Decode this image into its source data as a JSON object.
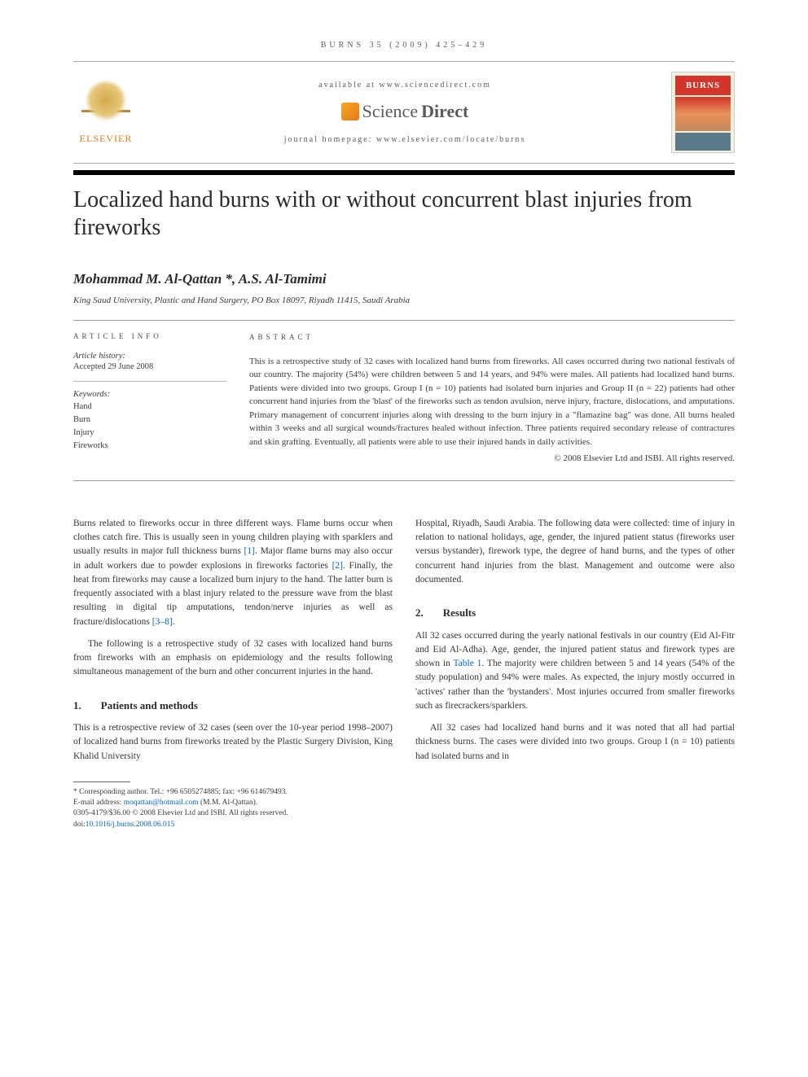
{
  "header": {
    "journal_line": "BURNS 35 (2009) 425–429",
    "available_at": "available at www.sciencedirect.com",
    "sd_label_1": "Science",
    "sd_label_2": "Direct",
    "journal_homepage": "journal homepage: www.elsevier.com/locate/burns",
    "elsevier": "ELSEVIER",
    "cover_title": "BURNS"
  },
  "title": "Localized hand burns with or without concurrent blast injuries from fireworks",
  "authors": "Mohammad M. Al-Qattan *, A.S. Al-Tamimi",
  "affiliation": "King Saud University, Plastic and Hand Surgery, PO Box 18097, Riyadh 11415, Saudi Arabia",
  "info": {
    "heading": "ARTICLE INFO",
    "history_label": "Article history:",
    "accepted": "Accepted 29 June 2008",
    "keywords_label": "Keywords:",
    "keywords": [
      "Hand",
      "Burn",
      "Injury",
      "Fireworks"
    ]
  },
  "abstract": {
    "heading": "ABSTRACT",
    "text": "This is a retrospective study of 32 cases with localized hand burns from fireworks. All cases occurred during two national festivals of our country. The majority (54%) were children between 5 and 14 years, and 94% were males. All patients had localized hand burns. Patients were divided into two groups. Group I (n = 10) patients had isolated burn injuries and Group II (n = 22) patients had other concurrent hand injuries from the 'blast' of the fireworks such as tendon avulsion, nerve injury, fracture, dislocations, and amputations. Primary management of concurrent injuries along with dressing to the burn injury in a \"flamazine bag\" was done. All burns healed within 3 weeks and all surgical wounds/fractures healed without infection. Three patients required secondary release of contractures and skin grafting. Eventually, all patients were able to use their injured hands in daily activities.",
    "copyright": "© 2008 Elsevier Ltd and ISBI. All rights reserved."
  },
  "body": {
    "intro_p1": "Burns related to fireworks occur in three different ways. Flame burns occur when clothes catch fire. This is usually seen in young children playing with sparklers and usually results in major full thickness burns ",
    "ref1": "[1]",
    "intro_p1b": ". Major flame burns may also occur in adult workers due to powder explosions in fireworks factories ",
    "ref2": "[2]",
    "intro_p1c": ". Finally, the heat from fireworks may cause a localized burn injury to the hand. The latter burn is frequently associated with a blast injury related to the pressure wave from the blast resulting in digital tip amputations, tendon/nerve injuries as well as fracture/dislocations ",
    "ref3_8": "[3–8]",
    "intro_p1d": ".",
    "intro_p2": "The following is a retrospective study of 32 cases with localized hand burns from fireworks with an emphasis on epidemiology and the results following simultaneous management of the burn and other concurrent injuries in the hand.",
    "sec1_num": "1.",
    "sec1_title": "Patients and methods",
    "sec1_p1": "This is a retrospective review of 32 cases (seen over the 10-year period 1998–2007) of localized hand burns from fireworks treated by the Plastic Surgery Division, King Khalid University",
    "sec1_p1_cont": "Hospital, Riyadh, Saudi Arabia. The following data were collected: time of injury in relation to national holidays, age, gender, the injured patient status (fireworks user versus bystander), firework type, the degree of hand burns, and the types of other concurrent hand injuries from the blast. Management and outcome were also documented.",
    "sec2_num": "2.",
    "sec2_title": "Results",
    "sec2_p1a": "All 32 cases occurred during the yearly national festivals in our country (Eid Al-Fitr and Eid Al-Adha). Age, gender, the injured patient status and firework types are shown in ",
    "table1_ref": "Table 1",
    "sec2_p1b": ". The majority were children between 5 and 14 years (54% of the study population) and 94% were males. As expected, the injury mostly occurred in 'actives' rather than the 'bystanders'. Most injuries occurred from smaller fireworks such as firecrackers/sparklers.",
    "sec2_p2": "All 32 cases had localized hand burns and it was noted that all had partial thickness burns. The cases were divided into two groups. Group I (n = 10) patients had isolated burns and in"
  },
  "footnote": {
    "corresponding": "* Corresponding author. Tel.: +96 6505274885; fax: +96 614679493.",
    "email_label": "E-mail address: ",
    "email": "moqattan@hotmail.com",
    "email_author": " (M.M. Al-Qattan).",
    "issn": "0305-4179/$36.00 © 2008 Elsevier Ltd and ISBI. All rights reserved.",
    "doi_label": "doi:",
    "doi": "10.1016/j.burns.2008.06.015"
  }
}
